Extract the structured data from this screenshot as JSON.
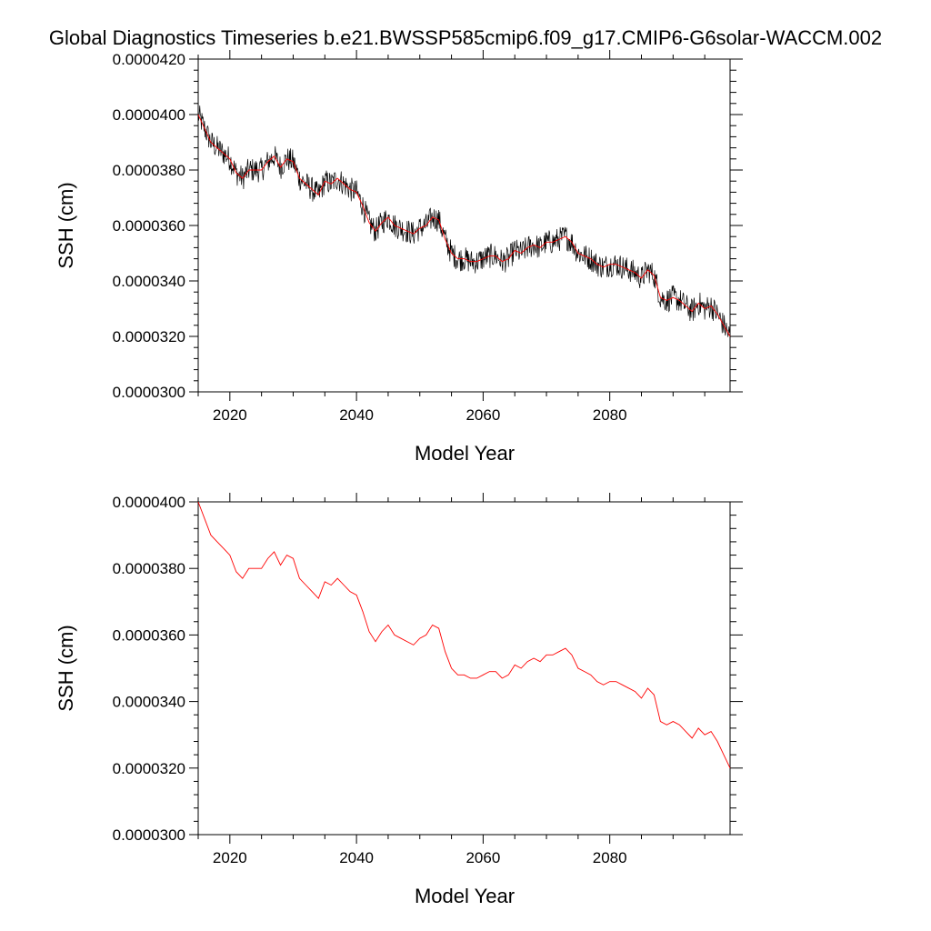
{
  "title": "Global Diagnostics Timeseries b.e21.BWSSP585cmip6.f09_g17.CMIP6-G6solar-WACCM.002",
  "colors": {
    "monthly": "#000000",
    "annual": "#ff0000",
    "axis": "#000000"
  },
  "chart_data": [
    {
      "type": "line",
      "title": "Global Diagnostics Timeseries b.e21.BWSSP585cmip6.f09_g17.CMIP6-G6solar-WACCM.002",
      "xlabel": "Model Year",
      "ylabel": "SSH (cm)",
      "xlim": [
        2015,
        2099
      ],
      "ylim": [
        3e-05,
        4.2e-05
      ],
      "xticks": [
        2020,
        2040,
        2060,
        2080
      ],
      "xtick_labels": [
        "2020",
        "2040",
        "2060",
        "2080"
      ],
      "yticks": [
        3e-05,
        3.2e-05,
        3.4e-05,
        3.6e-05,
        3.8e-05,
        4e-05,
        4.2e-05
      ],
      "ytick_labels": [
        "0.0000300",
        "0.0000320",
        "0.0000340",
        "0.0000360",
        "0.0000380",
        "0.0000400",
        "0.0000420"
      ],
      "series": [
        {
          "name": "monthly",
          "color": "#000000",
          "source": "monthly noisy trace around annual mean"
        },
        {
          "name": "annual",
          "color": "#ff0000",
          "source": "annual_means"
        }
      ]
    },
    {
      "type": "line",
      "xlabel": "Model Year",
      "ylabel": "SSH (cm)",
      "xlim": [
        2015,
        2099
      ],
      "ylim": [
        3e-05,
        4e-05
      ],
      "xticks": [
        2020,
        2040,
        2060,
        2080
      ],
      "xtick_labels": [
        "2020",
        "2040",
        "2060",
        "2080"
      ],
      "yticks": [
        3e-05,
        3.2e-05,
        3.4e-05,
        3.6e-05,
        3.8e-05,
        4e-05
      ],
      "ytick_labels": [
        "0.0000300",
        "0.0000320",
        "0.0000340",
        "0.0000360",
        "0.0000380",
        "0.0000400"
      ],
      "series": [
        {
          "name": "annual",
          "color": "#ff0000",
          "source": "annual_means"
        }
      ]
    }
  ],
  "annual_means": {
    "x": [
      2015,
      2016,
      2017,
      2018,
      2019,
      2020,
      2021,
      2022,
      2023,
      2024,
      2025,
      2026,
      2027,
      2028,
      2029,
      2030,
      2031,
      2032,
      2033,
      2034,
      2035,
      2036,
      2037,
      2038,
      2039,
      2040,
      2041,
      2042,
      2043,
      2044,
      2045,
      2046,
      2047,
      2048,
      2049,
      2050,
      2051,
      2052,
      2053,
      2054,
      2055,
      2056,
      2057,
      2058,
      2059,
      2060,
      2061,
      2062,
      2063,
      2064,
      2065,
      2066,
      2067,
      2068,
      2069,
      2070,
      2071,
      2072,
      2073,
      2074,
      2075,
      2076,
      2077,
      2078,
      2079,
      2080,
      2081,
      2082,
      2083,
      2084,
      2085,
      2086,
      2087,
      2088,
      2089,
      2090,
      2091,
      2092,
      2093,
      2094,
      2095,
      2096,
      2097,
      2098,
      2099
    ],
    "y": [
      4e-05,
      3.95e-05,
      3.9e-05,
      3.88e-05,
      3.86e-05,
      3.84e-05,
      3.79e-05,
      3.77e-05,
      3.8e-05,
      3.8e-05,
      3.8e-05,
      3.83e-05,
      3.85e-05,
      3.81e-05,
      3.84e-05,
      3.83e-05,
      3.77e-05,
      3.75e-05,
      3.73e-05,
      3.71e-05,
      3.76e-05,
      3.75e-05,
      3.77e-05,
      3.75e-05,
      3.73e-05,
      3.72e-05,
      3.67e-05,
      3.61e-05,
      3.58e-05,
      3.61e-05,
      3.63e-05,
      3.6e-05,
      3.59e-05,
      3.58e-05,
      3.57e-05,
      3.59e-05,
      3.6e-05,
      3.63e-05,
      3.62e-05,
      3.55e-05,
      3.5e-05,
      3.48e-05,
      3.48e-05,
      3.47e-05,
      3.47e-05,
      3.48e-05,
      3.49e-05,
      3.49e-05,
      3.47e-05,
      3.48e-05,
      3.51e-05,
      3.5e-05,
      3.52e-05,
      3.53e-05,
      3.52e-05,
      3.54e-05,
      3.54e-05,
      3.55e-05,
      3.56e-05,
      3.54e-05,
      3.5e-05,
      3.49e-05,
      3.48e-05,
      3.46e-05,
      3.45e-05,
      3.46e-05,
      3.46e-05,
      3.45e-05,
      3.44e-05,
      3.43e-05,
      3.41e-05,
      3.44e-05,
      3.42e-05,
      3.34e-05,
      3.33e-05,
      3.34e-05,
      3.33e-05,
      3.31e-05,
      3.29e-05,
      3.32e-05,
      3.3e-05,
      3.31e-05,
      3.28e-05,
      3.24e-05,
      3.2e-05
    ]
  }
}
